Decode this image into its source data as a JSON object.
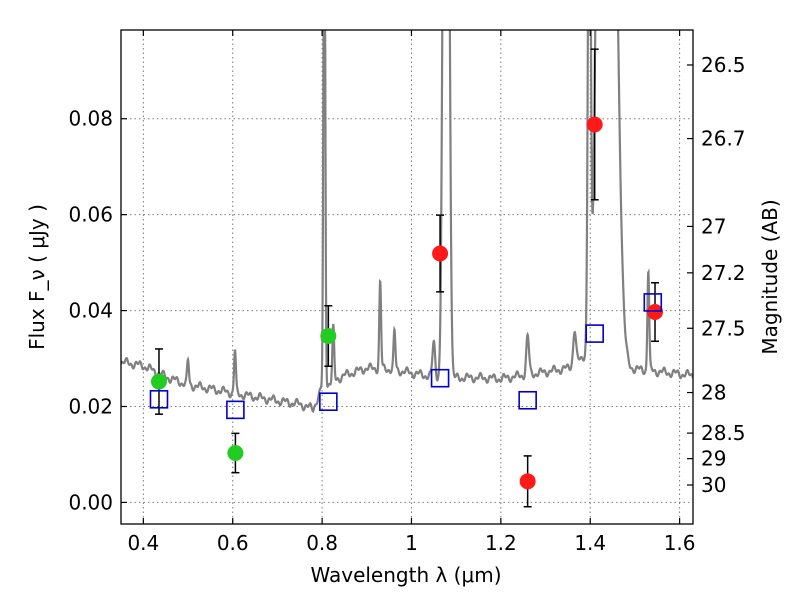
{
  "chart_data": {
    "type": "scatter",
    "xlabel": "Wavelength  λ (μm)",
    "ylabel": "Flux  F_ν  ( μJy )",
    "ylabel_right": "Magnitude (AB)",
    "xlim": [
      0.35,
      1.63
    ],
    "ylim": [
      -0.0045,
      0.0985
    ],
    "grid": true,
    "x_ticks": [
      0.4,
      0.6,
      0.8,
      1.0,
      1.2,
      1.4,
      1.6
    ],
    "x_tick_labels": [
      "0.4",
      "0.6",
      "0.8",
      "1",
      "1.2",
      "1.4",
      "1.6"
    ],
    "y_ticks": [
      0.0,
      0.02,
      0.04,
      0.06,
      0.08
    ],
    "y_tick_labels": [
      "0.00",
      "0.02",
      "0.04",
      "0.06",
      "0.08"
    ],
    "right_ticks": [
      {
        "label": "26.5",
        "mag": 26.5
      },
      {
        "label": "26.7",
        "mag": 26.7
      },
      {
        "label": "27",
        "mag": 27.0
      },
      {
        "label": "27.2",
        "mag": 27.2
      },
      {
        "label": "27.5",
        "mag": 27.5
      },
      {
        "label": "28",
        "mag": 28.0
      },
      {
        "label": "28.5",
        "mag": 28.5
      },
      {
        "label": "29",
        "mag": 29.0
      },
      {
        "label": "30",
        "mag": 30.0
      }
    ],
    "series": [
      {
        "marker": "circle",
        "color": "#22cc22",
        "points": [
          {
            "x": 0.435,
            "y": 0.0252,
            "err": 0.0068
          },
          {
            "x": 0.606,
            "y": 0.0103,
            "err": 0.0041
          },
          {
            "x": 0.814,
            "y": 0.0347,
            "err": 0.0063
          }
        ]
      },
      {
        "marker": "circle",
        "color": "#ff1a1a",
        "points": [
          {
            "x": 1.064,
            "y": 0.0519,
            "err": 0.008
          },
          {
            "x": 1.26,
            "y": 0.0044,
            "err": 0.0053
          },
          {
            "x": 1.41,
            "y": 0.0788,
            "err": 0.0157
          },
          {
            "x": 1.545,
            "y": 0.0397,
            "err": 0.0061
          }
        ]
      },
      {
        "marker": "open-square",
        "color": "#0000cc",
        "points": [
          {
            "x": 0.435,
            "y": 0.0215
          },
          {
            "x": 0.606,
            "y": 0.0193
          },
          {
            "x": 0.814,
            "y": 0.021
          },
          {
            "x": 1.064,
            "y": 0.0259
          },
          {
            "x": 1.26,
            "y": 0.0213
          },
          {
            "x": 1.41,
            "y": 0.0352
          },
          {
            "x": 1.54,
            "y": 0.0417
          }
        ]
      }
    ],
    "model_spectrum": {
      "color": "#808080",
      "continuum": [
        [
          0.35,
          0.0293
        ],
        [
          0.4,
          0.0285
        ],
        [
          0.45,
          0.0262
        ],
        [
          0.5,
          0.0245
        ],
        [
          0.55,
          0.0237
        ],
        [
          0.6,
          0.0228
        ],
        [
          0.65,
          0.022
        ],
        [
          0.7,
          0.0212
        ],
        [
          0.75,
          0.0205
        ],
        [
          0.78,
          0.0195
        ],
        [
          0.8,
          0.024
        ],
        [
          0.85,
          0.0265
        ],
        [
          0.9,
          0.028
        ],
        [
          0.95,
          0.0278
        ],
        [
          1.0,
          0.027
        ],
        [
          1.05,
          0.0262
        ],
        [
          1.08,
          0.0255
        ],
        [
          1.1,
          0.026
        ],
        [
          1.15,
          0.026
        ],
        [
          1.2,
          0.0258
        ],
        [
          1.25,
          0.0265
        ],
        [
          1.3,
          0.0272
        ],
        [
          1.35,
          0.028
        ],
        [
          1.38,
          0.03
        ],
        [
          1.4,
          0.032
        ],
        [
          1.42,
          0.031
        ],
        [
          1.44,
          0.03
        ],
        [
          1.46,
          0.0285
        ],
        [
          1.5,
          0.0278
        ],
        [
          1.53,
          0.0275
        ],
        [
          1.56,
          0.0272
        ],
        [
          1.6,
          0.0268
        ],
        [
          1.63,
          0.0265
        ]
      ],
      "lines": [
        {
          "x": 0.5,
          "peak": 0.005,
          "w": 0.002
        },
        {
          "x": 0.605,
          "peak": 0.009,
          "w": 0.002
        },
        {
          "x": 0.805,
          "peak": 0.12,
          "w": 0.002
        },
        {
          "x": 0.825,
          "peak": 0.011,
          "w": 0.002
        },
        {
          "x": 0.93,
          "peak": 0.018,
          "w": 0.002
        },
        {
          "x": 0.962,
          "peak": 0.008,
          "w": 0.002
        },
        {
          "x": 1.05,
          "peak": 0.007,
          "w": 0.003
        },
        {
          "x": 1.073,
          "peak": 0.12,
          "w": 0.004
        },
        {
          "x": 1.082,
          "peak": 0.12,
          "w": 0.004
        },
        {
          "x": 1.26,
          "peak": 0.008,
          "w": 0.003
        },
        {
          "x": 1.365,
          "peak": 0.007,
          "w": 0.003
        },
        {
          "x": 1.398,
          "peak": 0.12,
          "w": 0.003
        },
        {
          "x": 1.42,
          "peak": 0.12,
          "w": 0.008
        },
        {
          "x": 1.45,
          "peak": 0.12,
          "w": 0.012
        },
        {
          "x": 1.53,
          "peak": 0.021,
          "w": 0.002
        }
      ]
    }
  }
}
